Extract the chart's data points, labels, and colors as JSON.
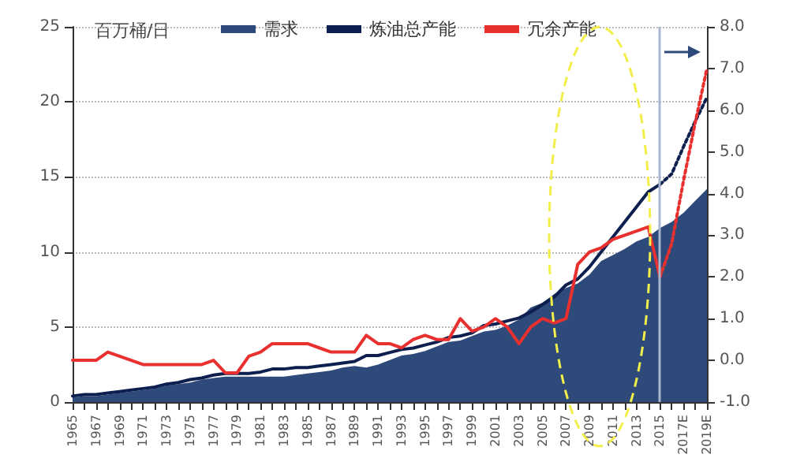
{
  "chart_data": {
    "type": "line",
    "ylabel": "百万桶/日",
    "categories": [
      "1965",
      null,
      "1967",
      null,
      "1969",
      null,
      "1971",
      null,
      "1973",
      null,
      "1975",
      null,
      "1977",
      null,
      "1979",
      null,
      "1981",
      null,
      "1983",
      null,
      "1985",
      null,
      "1987",
      null,
      "1989",
      null,
      "1991",
      null,
      "1993",
      null,
      "1995",
      null,
      "1997",
      null,
      "1999",
      null,
      "2001",
      null,
      "2003",
      null,
      "2005",
      null,
      "2007",
      null,
      "2009",
      null,
      "2011",
      null,
      "2013",
      null,
      "2015",
      null,
      "2017E",
      null,
      "2019E"
    ],
    "series": [
      {
        "name": "需求",
        "type": "area",
        "color": "#2e4a7a",
        "values": [
          0.3,
          0.4,
          0.4,
          0.5,
          0.6,
          0.7,
          0.8,
          0.9,
          1.1,
          1.2,
          1.3,
          1.5,
          1.6,
          1.7,
          1.7,
          1.7,
          1.7,
          1.7,
          1.7,
          1.8,
          1.9,
          2.0,
          2.1,
          2.3,
          2.4,
          2.3,
          2.5,
          2.8,
          3.1,
          3.2,
          3.4,
          3.7,
          4.0,
          4.1,
          4.4,
          4.7,
          4.8,
          5.1,
          5.5,
          6.3,
          6.6,
          7.2,
          7.6,
          7.9,
          8.5,
          9.4,
          9.8,
          10.2,
          10.7,
          11.0,
          11.6,
          12.0,
          12.6,
          13.4,
          14.2
        ]
      },
      {
        "name": "炼油总产能",
        "color": "#0d1f4f",
        "line_style": "solid",
        "values": [
          0.4,
          0.5,
          0.5,
          0.6,
          0.7,
          0.8,
          0.9,
          1.0,
          1.2,
          1.3,
          1.5,
          1.6,
          1.8,
          1.9,
          1.9,
          1.9,
          2.0,
          2.2,
          2.2,
          2.3,
          2.3,
          2.4,
          2.5,
          2.6,
          2.7,
          3.1,
          3.1,
          3.3,
          3.5,
          3.6,
          3.8,
          4.0,
          4.3,
          4.4,
          4.6,
          5.1,
          5.2,
          5.4,
          5.6,
          6.0,
          6.5,
          7.0,
          7.8,
          8.2,
          9.0,
          10.0,
          11.0,
          12.0,
          13.0,
          14.0,
          14.5,
          null,
          null,
          null,
          null
        ]
      },
      {
        "name": "冗余产能",
        "color": "#e8302f",
        "line_style": "solid",
        "axis": "y2",
        "values": [
          0.0,
          0.0,
          0.0,
          0.2,
          0.1,
          0.0,
          -0.1,
          -0.1,
          -0.1,
          -0.1,
          -0.1,
          -0.1,
          0.0,
          -0.3,
          -0.3,
          0.1,
          0.2,
          0.4,
          0.4,
          0.4,
          0.4,
          0.3,
          0.2,
          0.2,
          0.2,
          0.6,
          0.4,
          0.4,
          0.3,
          0.5,
          0.6,
          0.5,
          0.5,
          1.0,
          0.7,
          0.8,
          1.0,
          0.8,
          0.4,
          0.8,
          1.0,
          0.9,
          1.0,
          2.3,
          2.6,
          2.7,
          2.9,
          3.0,
          3.1,
          3.2,
          2.0,
          null,
          null,
          null,
          null
        ]
      },
      {
        "color": "#0d1f4f",
        "line_style": "dotted",
        "values": [
          null,
          null,
          null,
          null,
          null,
          null,
          null,
          null,
          null,
          null,
          null,
          null,
          null,
          null,
          null,
          null,
          null,
          null,
          null,
          null,
          null,
          null,
          null,
          null,
          null,
          null,
          null,
          null,
          null,
          null,
          null,
          null,
          null,
          null,
          null,
          null,
          null,
          null,
          null,
          null,
          null,
          null,
          null,
          null,
          null,
          null,
          null,
          null,
          null,
          null,
          14.5,
          15.2,
          17.0,
          18.7,
          20.3
        ]
      },
      {
        "color": "#e8302f",
        "line_style": "dotted",
        "axis": "y2",
        "values": [
          null,
          null,
          null,
          null,
          null,
          null,
          null,
          null,
          null,
          null,
          null,
          null,
          null,
          null,
          null,
          null,
          null,
          null,
          null,
          null,
          null,
          null,
          null,
          null,
          null,
          null,
          null,
          null,
          null,
          null,
          null,
          null,
          null,
          null,
          null,
          null,
          null,
          null,
          null,
          null,
          null,
          null,
          null,
          null,
          null,
          null,
          null,
          null,
          null,
          null,
          2.0,
          2.8,
          4.3,
          5.7,
          7.0
        ]
      }
    ],
    "ylim": [
      0,
      25
    ],
    "yticks": [
      0,
      5,
      10,
      15,
      20,
      25
    ],
    "y2lim": [
      -1,
      8
    ],
    "y2ticks": [
      {
        "value": -1,
        "label": "-1.0"
      },
      {
        "value": 0,
        "label": "0.0"
      },
      {
        "value": 1,
        "label": "1.0"
      },
      {
        "value": 2,
        "label": "2.0"
      },
      {
        "value": 3,
        "label": "3.0"
      },
      {
        "value": 4,
        "label": "4.0"
      },
      {
        "value": 5,
        "label": "5.0"
      },
      {
        "value": 6,
        "label": "6.0"
      },
      {
        "value": 7,
        "label": "7.0"
      },
      {
        "value": 8,
        "label": "8.0"
      }
    ],
    "ref_lines": [
      {
        "axis": "x",
        "value": "2015",
        "color": "#a9b6cf"
      }
    ],
    "grid": "y",
    "legend": "top",
    "marker": "none"
  }
}
